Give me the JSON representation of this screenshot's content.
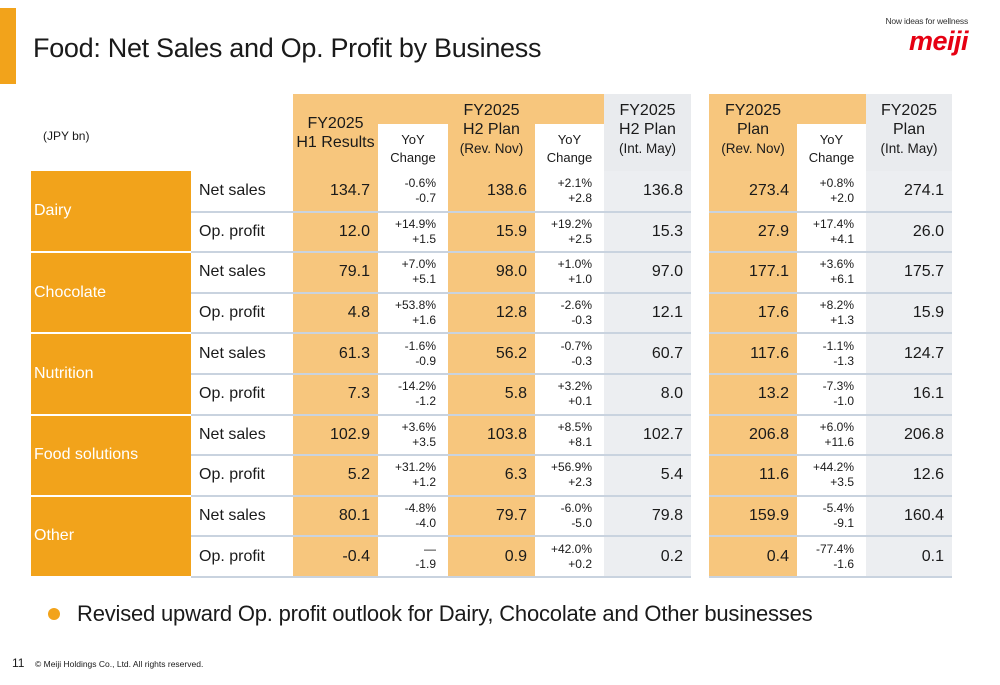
{
  "title": "Food: Net Sales and Op. Profit by Business",
  "logo": {
    "tagline": "Now ideas for wellness",
    "brand": "meiji",
    "brand_color": "#e60012"
  },
  "accent_color": "#f2a31b",
  "table": {
    "unit": "(JPY bn)",
    "headers": {
      "h1": {
        "line1": "FY2025",
        "line2": "H1 Results"
      },
      "h1_yoy": {
        "line1": "YoY",
        "line2": "Change"
      },
      "h2": {
        "line1": "FY2025",
        "line2": "H2 Plan",
        "line3": "(Rev. Nov)"
      },
      "h2_yoy": {
        "line1": "YoY",
        "line2": "Change"
      },
      "h2_int": {
        "line1": "FY2025",
        "line2": "H2 Plan",
        "line3": "(Int. May)"
      },
      "fy": {
        "line1": "FY2025",
        "line2": "Plan",
        "line3": "(Rev. Nov)"
      },
      "fy_yoy": {
        "line1": "YoY",
        "line2": "Change"
      },
      "fy_int": {
        "line1": "FY2025",
        "line2": "Plan",
        "line3": "(Int. May)"
      }
    },
    "segments": [
      {
        "name": "Dairy",
        "rows": [
          {
            "metric": "Net sales",
            "h1": "134.7",
            "h1_yoy_pct": "-0.6%",
            "h1_yoy_abs": "-0.7",
            "h2": "138.6",
            "h2_yoy_pct": "+2.1%",
            "h2_yoy_abs": "+2.8",
            "h2_int": "136.8",
            "fy": "273.4",
            "fy_yoy_pct": "+0.8%",
            "fy_yoy_abs": "+2.0",
            "fy_int": "274.1"
          },
          {
            "metric": "Op. profit",
            "h1": "12.0",
            "h1_yoy_pct": "+14.9%",
            "h1_yoy_abs": "+1.5",
            "h2": "15.9",
            "h2_yoy_pct": "+19.2%",
            "h2_yoy_abs": "+2.5",
            "h2_int": "15.3",
            "fy": "27.9",
            "fy_yoy_pct": "+17.4%",
            "fy_yoy_abs": "+4.1",
            "fy_int": "26.0"
          }
        ]
      },
      {
        "name": "Chocolate",
        "rows": [
          {
            "metric": "Net sales",
            "h1": "79.1",
            "h1_yoy_pct": "+7.0%",
            "h1_yoy_abs": "+5.1",
            "h2": "98.0",
            "h2_yoy_pct": "+1.0%",
            "h2_yoy_abs": "+1.0",
            "h2_int": "97.0",
            "fy": "177.1",
            "fy_yoy_pct": "+3.6%",
            "fy_yoy_abs": "+6.1",
            "fy_int": "175.7"
          },
          {
            "metric": "Op. profit",
            "h1": "4.8",
            "h1_yoy_pct": "+53.8%",
            "h1_yoy_abs": "+1.6",
            "h2": "12.8",
            "h2_yoy_pct": "-2.6%",
            "h2_yoy_abs": "-0.3",
            "h2_int": "12.1",
            "fy": "17.6",
            "fy_yoy_pct": "+8.2%",
            "fy_yoy_abs": "+1.3",
            "fy_int": "15.9"
          }
        ]
      },
      {
        "name": "Nutrition",
        "rows": [
          {
            "metric": "Net sales",
            "h1": "61.3",
            "h1_yoy_pct": "-1.6%",
            "h1_yoy_abs": "-0.9",
            "h2": "56.2",
            "h2_yoy_pct": "-0.7%",
            "h2_yoy_abs": "-0.3",
            "h2_int": "60.7",
            "fy": "117.6",
            "fy_yoy_pct": "-1.1%",
            "fy_yoy_abs": "-1.3",
            "fy_int": "124.7"
          },
          {
            "metric": "Op. profit",
            "h1": "7.3",
            "h1_yoy_pct": "-14.2%",
            "h1_yoy_abs": "-1.2",
            "h2": "5.8",
            "h2_yoy_pct": "+3.2%",
            "h2_yoy_abs": "+0.1",
            "h2_int": "8.0",
            "fy": "13.2",
            "fy_yoy_pct": "-7.3%",
            "fy_yoy_abs": "-1.0",
            "fy_int": "16.1"
          }
        ]
      },
      {
        "name": "Food solutions",
        "rows": [
          {
            "metric": "Net sales",
            "h1": "102.9",
            "h1_yoy_pct": "+3.6%",
            "h1_yoy_abs": "+3.5",
            "h2": "103.8",
            "h2_yoy_pct": "+8.5%",
            "h2_yoy_abs": "+8.1",
            "h2_int": "102.7",
            "fy": "206.8",
            "fy_yoy_pct": "+6.0%",
            "fy_yoy_abs": "+11.6",
            "fy_int": "206.8"
          },
          {
            "metric": "Op. profit",
            "h1": "5.2",
            "h1_yoy_pct": "+31.2%",
            "h1_yoy_abs": "+1.2",
            "h2": "6.3",
            "h2_yoy_pct": "+56.9%",
            "h2_yoy_abs": "+2.3",
            "h2_int": "5.4",
            "fy": "11.6",
            "fy_yoy_pct": "+44.2%",
            "fy_yoy_abs": "+3.5",
            "fy_int": "12.6"
          }
        ]
      },
      {
        "name": "Other",
        "rows": [
          {
            "metric": "Net sales",
            "h1": "80.1",
            "h1_yoy_pct": "-4.8%",
            "h1_yoy_abs": "-4.0",
            "h2": "79.7",
            "h2_yoy_pct": "-6.0%",
            "h2_yoy_abs": "-5.0",
            "h2_int": "79.8",
            "fy": "159.9",
            "fy_yoy_pct": "-5.4%",
            "fy_yoy_abs": "-9.1",
            "fy_int": "160.4"
          },
          {
            "metric": "Op. profit",
            "h1": "-0.4",
            "h1_yoy_pct": "—",
            "h1_yoy_abs": "-1.9",
            "h2": "0.9",
            "h2_yoy_pct": "+42.0%",
            "h2_yoy_abs": "+0.2",
            "h2_int": "0.2",
            "fy": "0.4",
            "fy_yoy_pct": "-77.4%",
            "fy_yoy_abs": "-1.6",
            "fy_int": "0.1"
          }
        ]
      }
    ]
  },
  "bullet": "Revised upward Op. profit outlook for Dairy, Chocolate and Other businesses",
  "footer": {
    "page_number": "11",
    "copyright": "© Meiji Holdings Co., Ltd. All rights reserved."
  }
}
